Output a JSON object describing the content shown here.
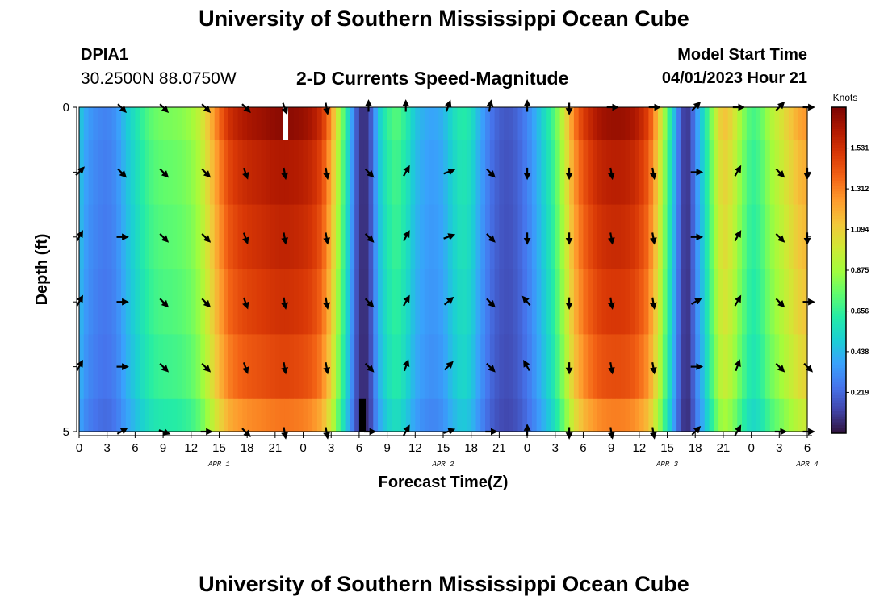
{
  "header": {
    "title": "University of Southern Mississippi Ocean Cube",
    "station": "DPIA1",
    "coords": "30.2500N  88.0750W",
    "subtitle": "2-D Currents Speed-Magnitude",
    "model_start_label": "Model Start Time",
    "model_start_value": "04/01/2023 Hour 21"
  },
  "footer": {
    "title": "University of Southern Mississippi Ocean Cube"
  },
  "colors": {
    "background": "#ffffff",
    "missing": "#ffffff",
    "scale": [
      "#30123b",
      "#4145ab",
      "#4675ed",
      "#39a2fc",
      "#1bcfd4",
      "#24eca6",
      "#61fc6c",
      "#a4fc3b",
      "#d1e834",
      "#f3c63a",
      "#fe9b2d",
      "#f36315",
      "#d93806",
      "#b11901",
      "#7a0402"
    ]
  },
  "chart_data": {
    "type": "heatmap",
    "title": "2-D Currents Speed-Magnitude",
    "xlabel": "Forecast Time(Z)",
    "ylabel": "Depth (ft)",
    "x_tick_labels": [
      "0",
      "3",
      "6",
      "9",
      "12",
      "15",
      "18",
      "21",
      "0",
      "3",
      "6",
      "9",
      "12",
      "15",
      "18",
      "21",
      "0",
      "3",
      "6",
      "9",
      "12",
      "15",
      "18",
      "21",
      "0",
      "3",
      "6"
    ],
    "y_tick_labels": [
      "0",
      "5"
    ],
    "y_range": [
      0,
      5
    ],
    "day_labels": [
      {
        "label": "APR 1",
        "hour": 15
      },
      {
        "label": "APR 2",
        "hour": 39
      },
      {
        "label": "APR 3",
        "hour": 63
      },
      {
        "label": "APR 4",
        "hour": 78
      }
    ],
    "colorbar": {
      "unit": "Knots",
      "min": 0,
      "max": 1.75,
      "tick_labels": [
        "1.531",
        "1.312",
        "1.094",
        "0.875",
        "0.656",
        "0.438",
        "0.219"
      ],
      "tick_values": [
        1.531,
        1.312,
        1.094,
        0.875,
        0.656,
        0.438,
        0.219
      ]
    },
    "hours": 78,
    "layers": 5,
    "speed_profile": [
      {
        "h": 0,
        "v": 0.48
      },
      {
        "h": 0.5,
        "v": 0.4
      },
      {
        "h": 1,
        "v": 0.34
      },
      {
        "h": 2,
        "v": 0.29
      },
      {
        "h": 3,
        "v": 0.27
      },
      {
        "h": 4,
        "v": 0.32
      },
      {
        "h": 5,
        "v": 0.45
      },
      {
        "h": 6,
        "v": 0.55
      },
      {
        "h": 7,
        "v": 0.65
      },
      {
        "h": 8,
        "v": 0.72
      },
      {
        "h": 9,
        "v": 0.75
      },
      {
        "h": 10,
        "v": 0.76
      },
      {
        "h": 11,
        "v": 0.78
      },
      {
        "h": 12,
        "v": 0.82
      },
      {
        "h": 13,
        "v": 0.92
      },
      {
        "h": 14,
        "v": 1.1
      },
      {
        "h": 15,
        "v": 1.3
      },
      {
        "h": 16,
        "v": 1.45
      },
      {
        "h": 17,
        "v": 1.52
      },
      {
        "h": 18,
        "v": 1.56
      },
      {
        "h": 19,
        "v": 1.58
      },
      {
        "h": 20,
        "v": 1.6
      },
      {
        "h": 21,
        "v": 1.62
      },
      {
        "h": 22,
        "v": 1.63
      },
      {
        "h": 23,
        "v": 1.62
      },
      {
        "h": 24,
        "v": 1.6
      },
      {
        "h": 25,
        "v": 1.56
      },
      {
        "h": 26,
        "v": 1.46
      },
      {
        "h": 27,
        "v": 1.2
      },
      {
        "h": 28,
        "v": 0.8
      },
      {
        "h": 29,
        "v": 0.45
      },
      {
        "h": 29.5,
        "v": 0.25
      },
      {
        "h": 30,
        "v": 0.1
      },
      {
        "h": 30.5,
        "v": 0.06
      },
      {
        "h": 31,
        "v": 0.1
      },
      {
        "h": 31.5,
        "v": 0.25
      },
      {
        "h": 32,
        "v": 0.45
      },
      {
        "h": 33,
        "v": 0.62
      },
      {
        "h": 34,
        "v": 0.7
      },
      {
        "h": 35,
        "v": 0.6
      },
      {
        "h": 36,
        "v": 0.45
      },
      {
        "h": 37,
        "v": 0.38
      },
      {
        "h": 38,
        "v": 0.36
      },
      {
        "h": 39,
        "v": 0.4
      },
      {
        "h": 40,
        "v": 0.52
      },
      {
        "h": 41,
        "v": 0.6
      },
      {
        "h": 42,
        "v": 0.55
      },
      {
        "h": 43,
        "v": 0.38
      },
      {
        "h": 44,
        "v": 0.25
      },
      {
        "h": 45,
        "v": 0.18
      },
      {
        "h": 46,
        "v": 0.16
      },
      {
        "h": 47,
        "v": 0.2
      },
      {
        "h": 48,
        "v": 0.28
      },
      {
        "h": 49,
        "v": 0.4
      },
      {
        "h": 50,
        "v": 0.55
      },
      {
        "h": 51,
        "v": 0.7
      },
      {
        "h": 52,
        "v": 0.95
      },
      {
        "h": 53,
        "v": 1.25
      },
      {
        "h": 54,
        "v": 1.42
      },
      {
        "h": 55,
        "v": 1.52
      },
      {
        "h": 56,
        "v": 1.58
      },
      {
        "h": 57,
        "v": 1.6
      },
      {
        "h": 58,
        "v": 1.6
      },
      {
        "h": 59,
        "v": 1.58
      },
      {
        "h": 60,
        "v": 1.52
      },
      {
        "h": 61,
        "v": 1.4
      },
      {
        "h": 62,
        "v": 1.1
      },
      {
        "h": 63,
        "v": 0.7
      },
      {
        "h": 64,
        "v": 0.35
      },
      {
        "h": 64.5,
        "v": 0.15
      },
      {
        "h": 65,
        "v": 0.08
      },
      {
        "h": 65.5,
        "v": 0.12
      },
      {
        "h": 66,
        "v": 0.3
      },
      {
        "h": 67,
        "v": 0.55
      },
      {
        "h": 68,
        "v": 0.85
      },
      {
        "h": 69,
        "v": 1.1
      },
      {
        "h": 70,
        "v": 1.0
      },
      {
        "h": 71,
        "v": 0.8
      },
      {
        "h": 72,
        "v": 0.65
      },
      {
        "h": 73,
        "v": 0.7
      },
      {
        "h": 74,
        "v": 0.85
      },
      {
        "h": 75,
        "v": 0.95
      },
      {
        "h": 76,
        "v": 1.05
      },
      {
        "h": 77,
        "v": 1.15
      },
      {
        "h": 78,
        "v": 1.2
      }
    ],
    "layer_factors": [
      1.05,
      1.0,
      0.97,
      0.94,
      0.9,
      0.82
    ],
    "missing_cells": [
      {
        "hour_start": 21.8,
        "hour_end": 22.4,
        "depth_start": 0,
        "depth_end": 0.5,
        "color": "white"
      },
      {
        "hour_start": 30.0,
        "hour_end": 30.7,
        "depth_start": 4.5,
        "depth_end": 5,
        "color": "black"
      }
    ],
    "arrow_hours": [
      0,
      4.5,
      9,
      13.5,
      17.8,
      22,
      26.5,
      31,
      35,
      39.5,
      44,
      48,
      52.5,
      57,
      61.5,
      66,
      70.5,
      75,
      78
    ],
    "arrow_depths": [
      0,
      1,
      2,
      3,
      4,
      5
    ],
    "arrow_directions_deg": [
      [
        null,
        135,
        135,
        135,
        135,
        160,
        170,
        0,
        0,
        20,
        10,
        0,
        180,
        90,
        90,
        45,
        90,
        45,
        90
      ],
      [
        45,
        135,
        135,
        135,
        160,
        170,
        170,
        135,
        30,
        70,
        135,
        180,
        180,
        170,
        170,
        90,
        30,
        135,
        180
      ],
      [
        30,
        90,
        135,
        135,
        160,
        170,
        170,
        135,
        30,
        70,
        135,
        180,
        180,
        170,
        170,
        90,
        30,
        135,
        180
      ],
      [
        30,
        90,
        135,
        135,
        160,
        170,
        170,
        135,
        30,
        50,
        135,
        320,
        180,
        170,
        170,
        60,
        30,
        135,
        90
      ],
      [
        30,
        90,
        135,
        135,
        160,
        170,
        170,
        135,
        20,
        45,
        135,
        330,
        180,
        170,
        170,
        90,
        20,
        135,
        135
      ],
      [
        null,
        60,
        110,
        90,
        135,
        170,
        170,
        90,
        30,
        70,
        90,
        0,
        180,
        170,
        170,
        45,
        30,
        90,
        90
      ]
    ]
  }
}
